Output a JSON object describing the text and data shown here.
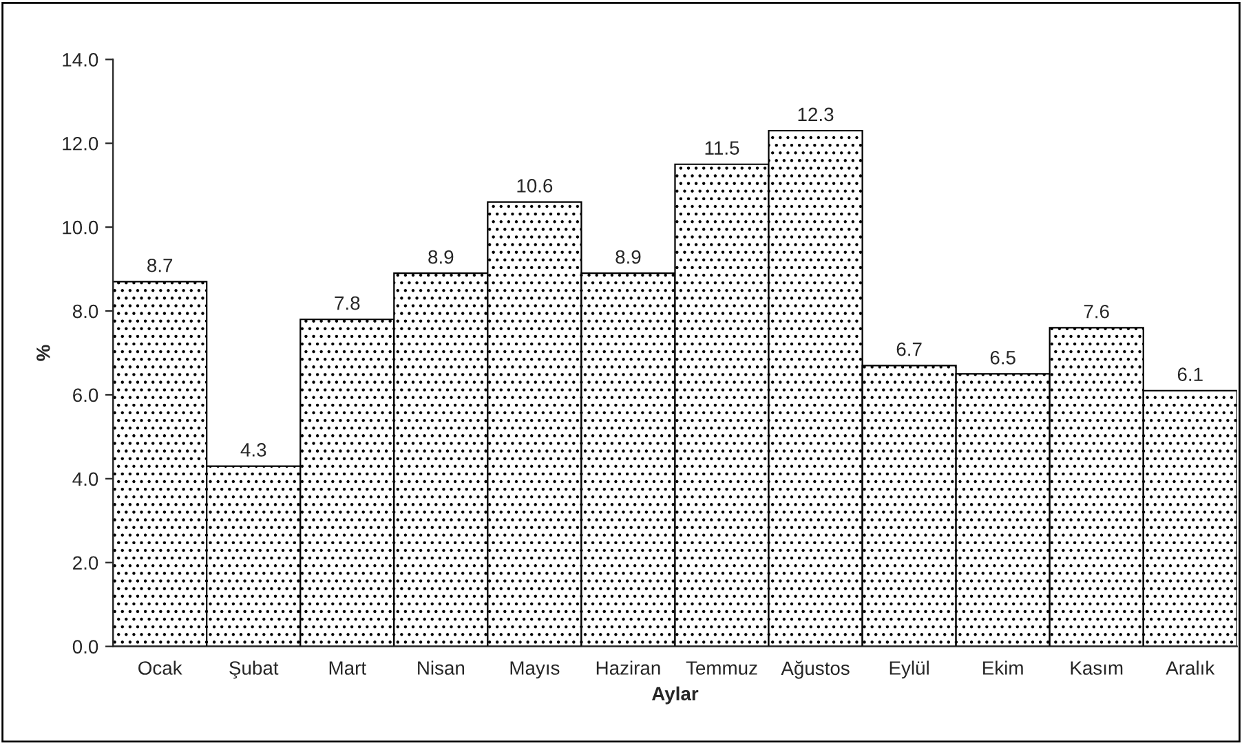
{
  "chart_data": {
    "type": "bar",
    "xlabel": "Aylar",
    "ylabel": "%",
    "categories": [
      "Ocak",
      "Şubat",
      "Mart",
      "Nisan",
      "Mayıs",
      "Haziran",
      "Temmuz",
      "Ağustos",
      "Eylül",
      "Ekim",
      "Kasım",
      "Aralık"
    ],
    "values": [
      8.7,
      4.3,
      7.8,
      8.9,
      10.6,
      8.9,
      11.5,
      12.3,
      6.7,
      6.5,
      7.6,
      6.1
    ],
    "color": "#000000",
    "ylim": [
      0,
      14
    ],
    "yticks": [
      {
        "value": 0,
        "label": "0.0"
      },
      {
        "value": 2,
        "label": "2.0"
      },
      {
        "value": 4,
        "label": "4.0"
      },
      {
        "value": 6,
        "label": "6.0"
      },
      {
        "value": 8,
        "label": "8.0"
      },
      {
        "value": 10,
        "label": "10.0"
      },
      {
        "value": 12,
        "label": "12.0"
      },
      {
        "value": 14,
        "label": "14.0"
      }
    ],
    "data_labels": true,
    "grid": false,
    "legend": false
  }
}
